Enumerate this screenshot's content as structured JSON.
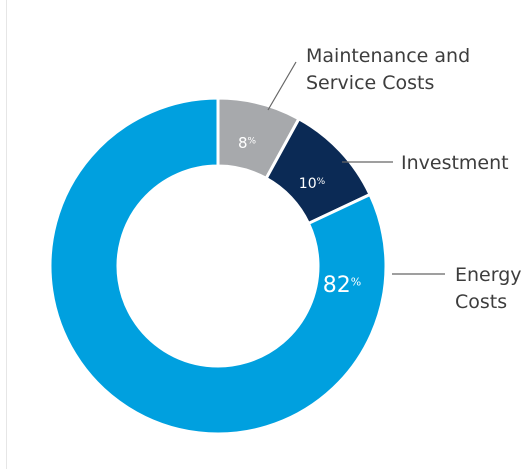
{
  "chart_data": {
    "type": "pie",
    "variant": "donut",
    "title": "",
    "slices": [
      {
        "label": "Maintenance and Service Costs",
        "label_lines": [
          "Maintenance and",
          "Service Costs"
        ],
        "value": 8,
        "value_label": "8",
        "unit": "%",
        "color": "#a7a9ac"
      },
      {
        "label": "Investment",
        "label_lines": [
          "Investment"
        ],
        "value": 10,
        "value_label": "10",
        "unit": "%",
        "color": "#0b2a55"
      },
      {
        "label": "Energy Costs",
        "label_lines": [
          "Energy",
          "Costs"
        ],
        "value": 82,
        "value_label": "82",
        "unit": "%",
        "color": "#00a0df"
      }
    ],
    "start_angle": "12 o'clock",
    "direction": "clockwise",
    "legend": "none"
  }
}
